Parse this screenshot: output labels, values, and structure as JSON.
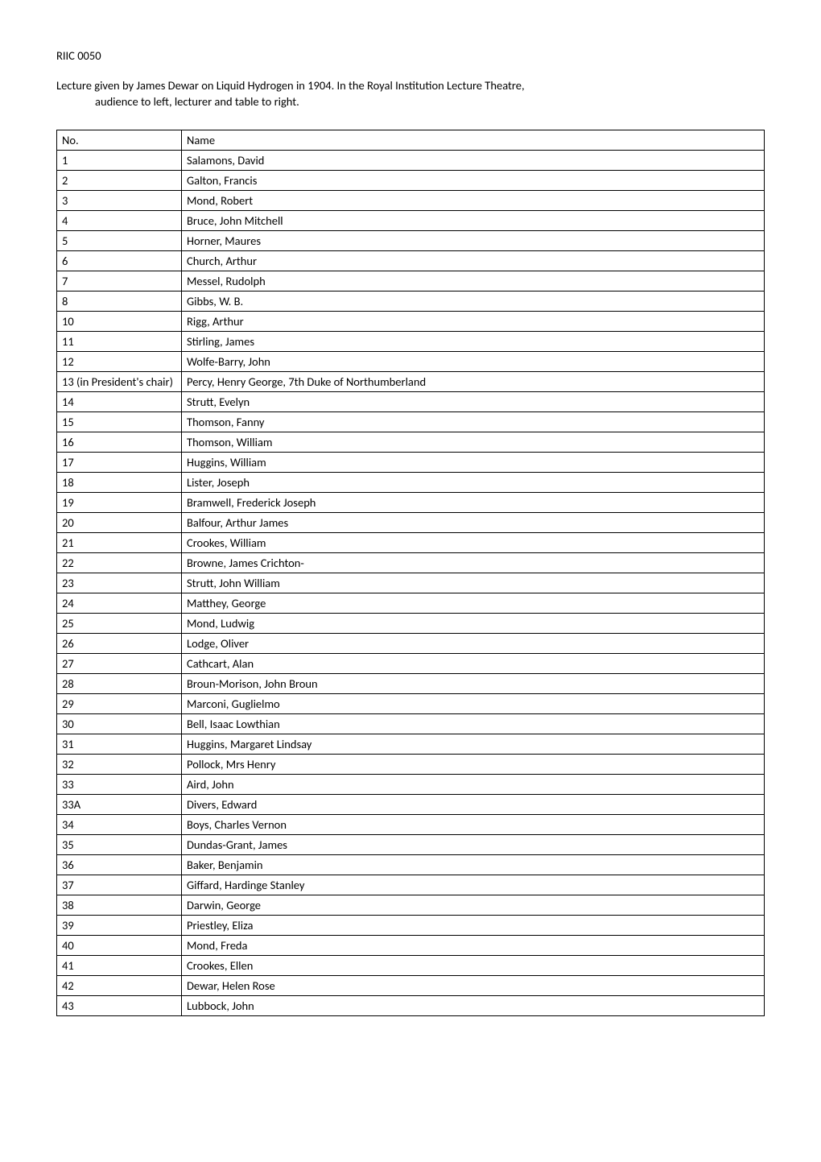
{
  "header": {
    "refId": "RIIC 0050",
    "descriptionLine1": "Lecture given by James Dewar on Liquid Hydrogen in 1904. In the Royal Institution Lecture Theatre,",
    "descriptionLine2": "audience to left, lecturer and table to right."
  },
  "table": {
    "columns": [
      "No.",
      "Name"
    ],
    "rows": [
      [
        "1",
        "Salamons, David"
      ],
      [
        "2",
        "Galton, Francis"
      ],
      [
        "3",
        "Mond, Robert"
      ],
      [
        "4",
        "Bruce, John Mitchell"
      ],
      [
        "5",
        "Horner, Maures"
      ],
      [
        "6",
        "Church, Arthur"
      ],
      [
        "7",
        "Messel, Rudolph"
      ],
      [
        "8",
        "Gibbs, W. B."
      ],
      [
        "10",
        "Rigg, Arthur"
      ],
      [
        "11",
        "Stirling, James"
      ],
      [
        "12",
        "Wolfe-Barry, John"
      ],
      [
        "13 (in President's chair)",
        "Percy, Henry George, 7th Duke of Northumberland"
      ],
      [
        "14",
        "Strutt, Evelyn"
      ],
      [
        "15",
        "Thomson, Fanny"
      ],
      [
        "16",
        "Thomson, William"
      ],
      [
        "17",
        "Huggins, William"
      ],
      [
        "18",
        "Lister, Joseph"
      ],
      [
        "19",
        "Bramwell, Frederick Joseph"
      ],
      [
        "20",
        "Balfour, Arthur James"
      ],
      [
        "21",
        "Crookes, William"
      ],
      [
        "22",
        "Browne, James Crichton-"
      ],
      [
        "23",
        "Strutt, John William"
      ],
      [
        "24",
        "Matthey, George"
      ],
      [
        "25",
        "Mond, Ludwig"
      ],
      [
        "26",
        "Lodge, Oliver"
      ],
      [
        "27",
        "Cathcart, Alan"
      ],
      [
        "28",
        "Broun-Morison, John Broun"
      ],
      [
        "29",
        "Marconi, Guglielmo"
      ],
      [
        "30",
        "Bell, Isaac Lowthian"
      ],
      [
        "31",
        "Huggins, Margaret Lindsay"
      ],
      [
        "32",
        "Pollock, Mrs Henry"
      ],
      [
        "33",
        "Aird, John"
      ],
      [
        "33A",
        "Divers, Edward"
      ],
      [
        "34",
        "Boys, Charles Vernon"
      ],
      [
        "35",
        "Dundas-Grant, James"
      ],
      [
        "36",
        "Baker, Benjamin"
      ],
      [
        "37",
        "Giffard, Hardinge Stanley"
      ],
      [
        "38",
        "Darwin, George"
      ],
      [
        "39",
        "Priestley, Eliza"
      ],
      [
        "40",
        "Mond, Freda"
      ],
      [
        "41",
        "Crookes, Ellen"
      ],
      [
        "42",
        "Dewar, Helen Rose"
      ],
      [
        "43",
        "Lubbock, John"
      ]
    ]
  }
}
